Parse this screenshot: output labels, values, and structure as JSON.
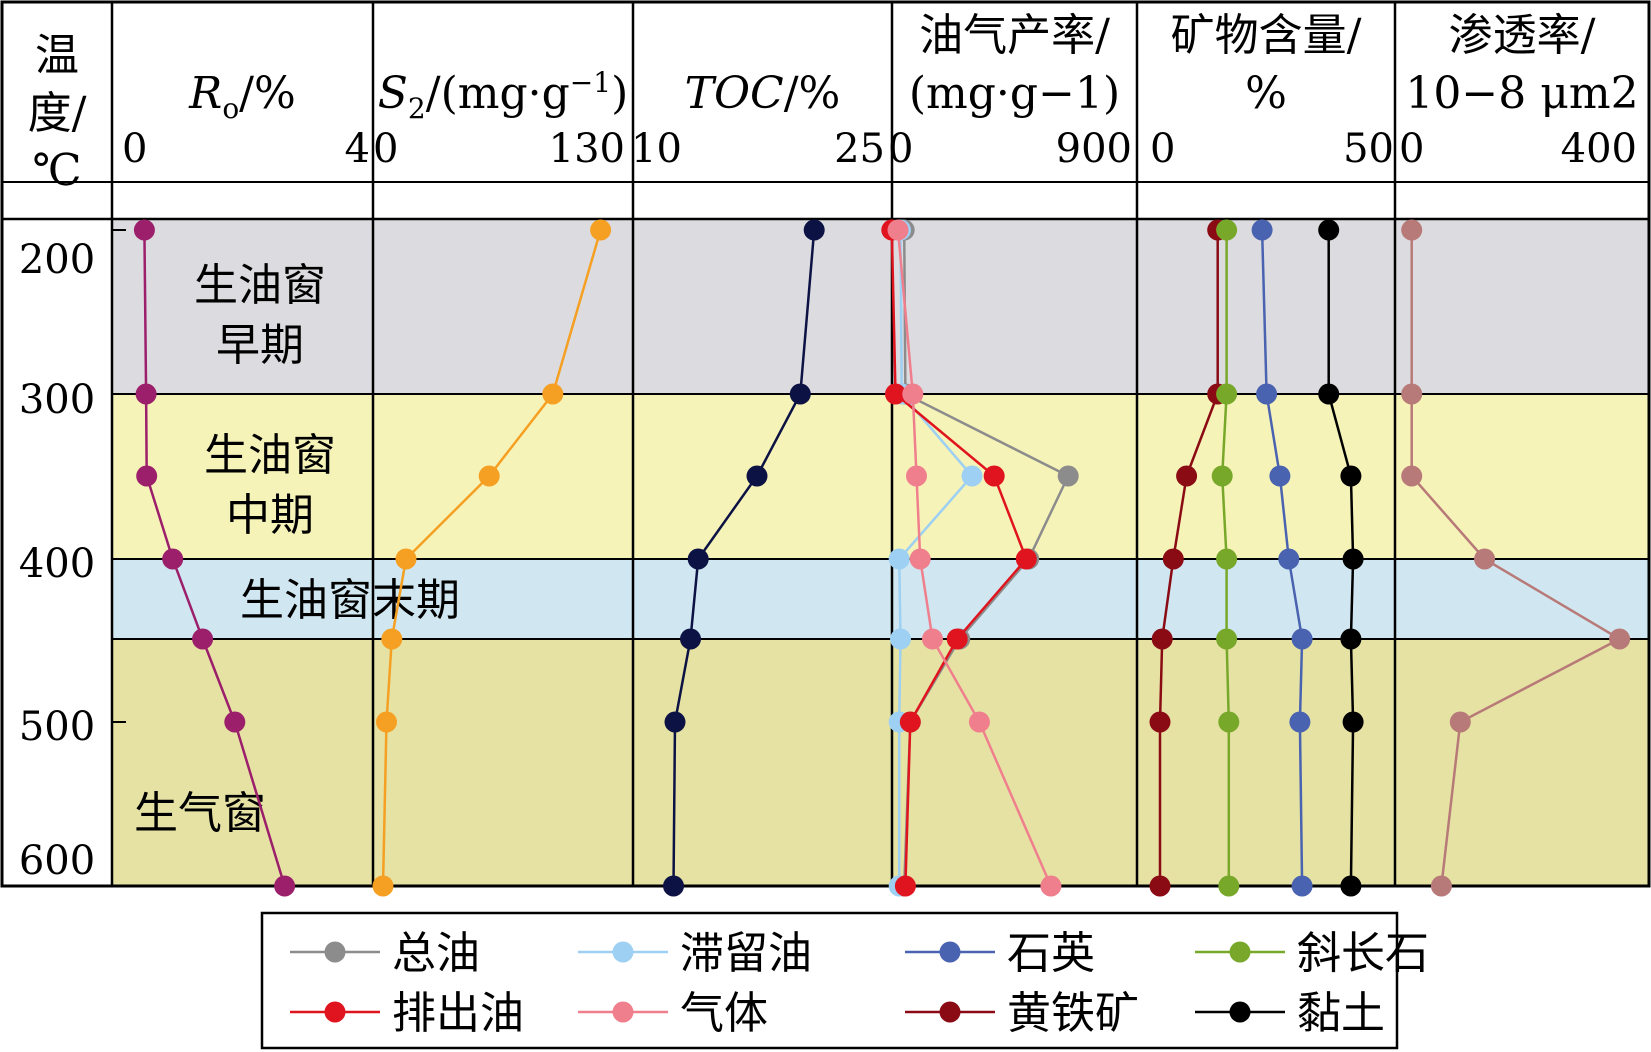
{
  "chart_data": {
    "type": "line",
    "y_axis": {
      "label_lines": [
        "温",
        "度/",
        "℃"
      ],
      "ticks": [
        200,
        300,
        400,
        500,
        600
      ]
    },
    "panels": [
      {
        "id": "ro",
        "label": "Ro/%",
        "label_parts": {
          "main": "R",
          "sub": "o",
          "rest": "/%"
        },
        "range": [
          0,
          4
        ],
        "tick_labels": [
          "0",
          "4"
        ],
        "series": [
          {
            "key": "ro",
            "color": "#9c1f6b",
            "points": [
              [
                200,
                0.22
              ],
              [
                300,
                0.25
              ],
              [
                350,
                0.26
              ],
              [
                400,
                0.72
              ],
              [
                450,
                1.25
              ],
              [
                500,
                1.82
              ],
              [
                600,
                2.7
              ]
            ]
          }
        ]
      },
      {
        "id": "s2",
        "label": "S2/(mg·g-1)",
        "label_parts": {
          "main": "S",
          "sub": "2",
          "rest": "/(mg·g",
          "sup": "−1",
          "end": ")"
        },
        "range": [
          0,
          130
        ],
        "tick_labels": [
          "0",
          "130"
        ],
        "series": [
          {
            "key": "s2",
            "color": "#f5a023",
            "points": [
              [
                200,
                123
              ],
              [
                300,
                96
              ],
              [
                350,
                60
              ],
              [
                400,
                13
              ],
              [
                450,
                5
              ],
              [
                500,
                2
              ],
              [
                600,
                0
              ]
            ]
          }
        ]
      },
      {
        "id": "toc",
        "label": "TOC/%",
        "label_parts": {
          "italic": "TOC",
          "rest": "/%"
        },
        "range": [
          10,
          25
        ],
        "tick_labels": [
          "10",
          "25"
        ],
        "series": [
          {
            "key": "toc",
            "color": "#0d1245",
            "points": [
              [
                200,
                21.2
              ],
              [
                300,
                20.3
              ],
              [
                350,
                17.5
              ],
              [
                400,
                13.7
              ],
              [
                450,
                13.2
              ],
              [
                500,
                12.2
              ],
              [
                600,
                12.1
              ]
            ]
          }
        ]
      },
      {
        "id": "yield",
        "label_lines": [
          "油气产率/",
          "(mg·g−1)"
        ],
        "range": [
          0,
          900
        ],
        "tick_labels": [
          "0",
          "900"
        ],
        "series": [
          {
            "key": "total_oil",
            "color": "#8c8c8c",
            "points": [
              [
                200,
                25
              ],
              [
                300,
                30
              ],
              [
                350,
                690
              ],
              [
                400,
                530
              ],
              [
                450,
                250
              ],
              [
                500,
                50
              ],
              [
                600,
                25
              ]
            ]
          },
          {
            "key": "retained_oil",
            "color": "#9dd0f3",
            "points": [
              [
                200,
                10
              ],
              [
                300,
                15
              ],
              [
                350,
                300
              ],
              [
                400,
                5
              ],
              [
                450,
                10
              ],
              [
                500,
                5
              ],
              [
                600,
                5
              ]
            ]
          },
          {
            "key": "expelled_oil",
            "color": "#e0141e",
            "points": [
              [
                200,
                -25
              ],
              [
                300,
                -10
              ],
              [
                350,
                390
              ],
              [
                400,
                520
              ],
              [
                450,
                240
              ],
              [
                500,
                50
              ],
              [
                600,
                30
              ]
            ]
          },
          {
            "key": "gas",
            "color": "#f07f8d",
            "points": [
              [
                200,
                0
              ],
              [
                300,
                60
              ],
              [
                350,
                75
              ],
              [
                400,
                90
              ],
              [
                450,
                140
              ],
              [
                500,
                330
              ],
              [
                600,
                620
              ]
            ]
          }
        ]
      },
      {
        "id": "mineral",
        "label_lines": [
          "矿物含量/",
          "%"
        ],
        "range": [
          0,
          50
        ],
        "tick_labels": [
          "0",
          "50"
        ],
        "series": [
          {
            "key": "pyrite",
            "color": "#8a0b14",
            "points": [
              [
                200,
                13
              ],
              [
                300,
                13
              ],
              [
                350,
                6
              ],
              [
                400,
                3
              ],
              [
                450,
                0.5
              ],
              [
                500,
                0
              ],
              [
                600,
                0
              ]
            ]
          },
          {
            "key": "plagioclase",
            "color": "#77a82a",
            "points": [
              [
                200,
                15
              ],
              [
                300,
                15
              ],
              [
                350,
                14
              ],
              [
                400,
                15
              ],
              [
                450,
                15
              ],
              [
                500,
                15.5
              ],
              [
                600,
                15.5
              ]
            ]
          },
          {
            "key": "quartz",
            "color": "#4a63b0",
            "points": [
              [
                200,
                23
              ],
              [
                300,
                24
              ],
              [
                350,
                27
              ],
              [
                400,
                29
              ],
              [
                450,
                32
              ],
              [
                500,
                31.5
              ],
              [
                600,
                32
              ]
            ]
          },
          {
            "key": "clay",
            "color": "#000000",
            "points": [
              [
                200,
                38
              ],
              [
                300,
                38
              ],
              [
                350,
                43
              ],
              [
                400,
                43.5
              ],
              [
                450,
                43
              ],
              [
                500,
                43.5
              ],
              [
                600,
                43
              ]
            ]
          }
        ]
      },
      {
        "id": "perm",
        "label_lines": [
          "渗透率/",
          "10−8 μm2"
        ],
        "range": [
          0,
          400
        ],
        "tick_labels": [
          "0",
          "400"
        ],
        "series": [
          {
            "key": "perm",
            "color": "#b87a78",
            "points": [
              [
                200,
                5
              ],
              [
                300,
                5
              ],
              [
                350,
                5
              ],
              [
                400,
                140
              ],
              [
                450,
                390
              ],
              [
                500,
                95
              ],
              [
                600,
                60
              ]
            ]
          }
        ]
      }
    ],
    "zones": [
      {
        "label_lines": [
          "生油窗",
          "早期"
        ],
        "from": 200,
        "to": 300,
        "color": "#dcdbdf"
      },
      {
        "label_lines": [
          "生油窗",
          "中期"
        ],
        "from": 300,
        "to": 400,
        "color": "#f6f3b8"
      },
      {
        "label_lines": [
          "生油窗末期"
        ],
        "from": 400,
        "to": 450,
        "color": "#d0e7f1"
      },
      {
        "label_lines": [
          "生气窗"
        ],
        "from": 450,
        "to": 600,
        "color": "#e5e2a4"
      }
    ],
    "legend": [
      {
        "label": "总油",
        "color": "#8c8c8c"
      },
      {
        "label": "滞留油",
        "color": "#9dd0f3"
      },
      {
        "label": "石英",
        "color": "#4a63b0"
      },
      {
        "label": "斜长石",
        "color": "#77a82a"
      },
      {
        "label": "排出油",
        "color": "#e0141e"
      },
      {
        "label": "气体",
        "color": "#f07f8d"
      },
      {
        "label": "黄铁矿",
        "color": "#8a0b14"
      },
      {
        "label": "黏土",
        "color": "#000000"
      }
    ]
  }
}
